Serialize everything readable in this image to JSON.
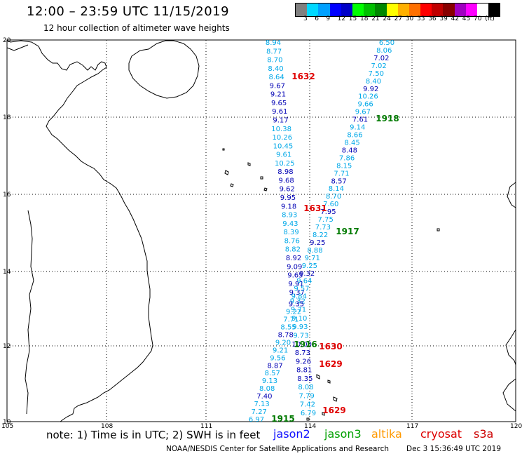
{
  "header": {
    "title": "12:00 – 23:59 UTC 11/15/2019",
    "subtitle": "12 hour collection of altimeter wave heights"
  },
  "scale": {
    "colors": [
      "#808080",
      "#00d8ff",
      "#00a0ff",
      "#0000ff",
      "#0000c8",
      "#00ff00",
      "#00c000",
      "#008800",
      "#ffff00",
      "#ffb000",
      "#ff7000",
      "#ff0000",
      "#c00000",
      "#880000",
      "#a000c0",
      "#ff00ff",
      "#ffffff",
      "#000000"
    ],
    "labels": [
      "3",
      "6",
      "9",
      "12",
      "15",
      "18",
      "21",
      "24",
      "27",
      "30",
      "33",
      "36",
      "39",
      "42",
      "45",
      "70",
      "(ft)"
    ]
  },
  "axes": {
    "lon_labels": [
      "105",
      "108",
      "111",
      "114",
      "117",
      "120"
    ],
    "lat_labels": [
      "20",
      "18",
      "16",
      "14",
      "12",
      "10"
    ]
  },
  "tracks": {
    "jason2_a": {
      "color": "#0000cc",
      "values": [
        "8.94",
        "8.77",
        "8.70",
        "8.40",
        "8.64",
        "9.67",
        "9.21",
        "9.65",
        "9.61",
        "9.17",
        "10.38",
        "10.26",
        "10.45",
        "9.61",
        "10.25",
        "8.98",
        "9.68",
        "9.62",
        "9.95",
        "9.18",
        "8.93",
        "9.43",
        "8.39",
        "8.76",
        "8.82",
        "8.92",
        "9.09",
        "9.65",
        "9.91",
        "9.37",
        "9.32",
        "9.71",
        "9.10",
        "9.93",
        "9.73",
        "10.00",
        "8.73",
        "9.26",
        "8.81",
        "8.35",
        "8.08",
        "7.79",
        "7.42",
        "6.79"
      ]
    },
    "jason2_b": {
      "values": [
        "6.50",
        "8.06",
        "7.02",
        "7.02",
        "7.50",
        "8.40",
        "9.92",
        "10.26",
        "9.66",
        "9.67",
        "7.61",
        "9.14",
        "8.66",
        "8.45",
        "8.48",
        "7.86",
        "8.15",
        "7.71",
        "8.57",
        "8.14",
        "8.70",
        "7.60",
        "7.95",
        "7.75",
        "7.73",
        "8.22",
        "9.25",
        "8.88",
        "9.71",
        "9.25",
        "9.32",
        "9.64",
        "9.57",
        "9.84",
        "9.35",
        "9.22",
        "7.71",
        "8.55",
        "8.78",
        "9.20",
        "9.21",
        "9.56",
        "8.87",
        "8.57",
        "9.13",
        "8.08",
        "7.40",
        "7.13",
        "7.27",
        "6.97"
      ]
    },
    "time_labels": [
      {
        "text": "1632",
        "sat": "cryosat"
      },
      {
        "text": "1918",
        "sat": "jason3"
      },
      {
        "text": "1631",
        "sat": "cryosat"
      },
      {
        "text": "1917",
        "sat": "jason3"
      },
      {
        "text": "1916",
        "sat": "jason3"
      },
      {
        "text": "1630",
        "sat": "cryosat"
      },
      {
        "text": "1629",
        "sat": "cryosat"
      },
      {
        "text": "1629",
        "sat": "cryosat"
      },
      {
        "text": "1915",
        "sat": "jason3"
      }
    ]
  },
  "legend": {
    "note": "note:  1) Time is in UTC;  2) SWH is in feet",
    "satellites": [
      {
        "name": "jason2",
        "color": "#1010ff"
      },
      {
        "name": "jason3",
        "color": "#00a000"
      },
      {
        "name": "altika",
        "color": "#ff9900"
      },
      {
        "name": "cryosat",
        "color": "#dd0000"
      },
      {
        "name": "s3a",
        "color": "#cc0000"
      }
    ]
  },
  "credit": {
    "org": "NOAA/NESDIS Center for Satellite Applications and Research",
    "stamp": "Dec  3 15:36:49 UTC 2019"
  },
  "colors": {
    "dark_blue": "#0000b4",
    "light_blue": "#00a8e8",
    "red": "#e00000",
    "green": "#007a00"
  }
}
